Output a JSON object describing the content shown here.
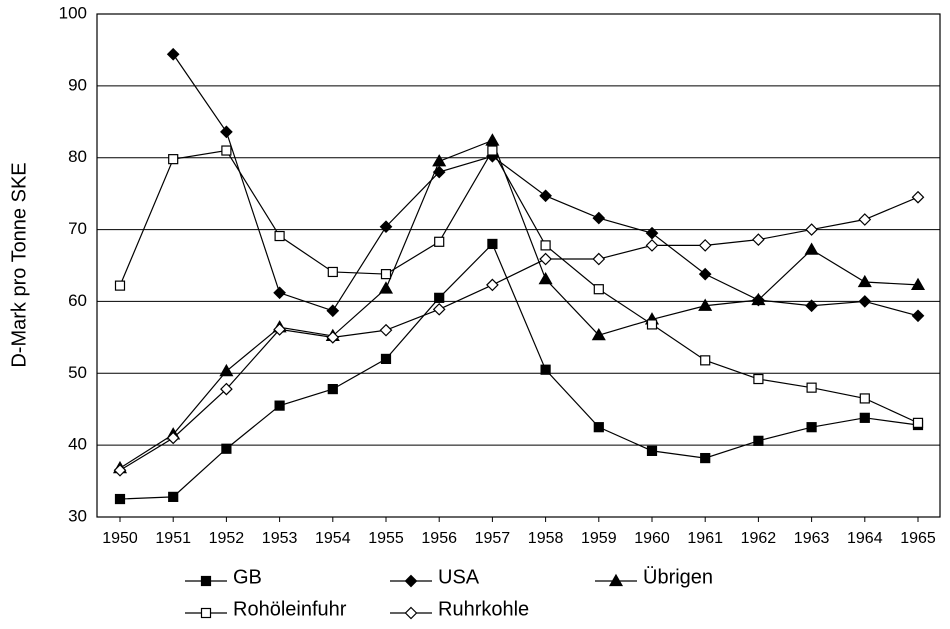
{
  "chart_data": {
    "type": "line",
    "y_label": "D-Mark pro Tonne SKE",
    "x": [
      1950,
      1951,
      1952,
      1953,
      1954,
      1955,
      1956,
      1957,
      1958,
      1959,
      1960,
      1961,
      1962,
      1963,
      1964,
      1965
    ],
    "xlim": [
      1950,
      1965
    ],
    "xticks": [
      1950,
      1951,
      1952,
      1953,
      1954,
      1955,
      1956,
      1957,
      1958,
      1959,
      1960,
      1961,
      1962,
      1963,
      1964,
      1965
    ],
    "ylim": [
      30,
      100
    ],
    "yticks": [
      30,
      40,
      50,
      60,
      70,
      80,
      90,
      100
    ],
    "grid": true,
    "series": [
      {
        "name": "GB",
        "color": "#000000",
        "marker": "square",
        "filled": true,
        "values": [
          32.5,
          32.8,
          39.5,
          45.5,
          47.8,
          52,
          60.5,
          68,
          50.5,
          42.5,
          39.2,
          38.2,
          40.6,
          42.5,
          43.8,
          42.8
        ]
      },
      {
        "name": "USA",
        "color": "#000000",
        "marker": "diamond",
        "filled": true,
        "values": [
          null,
          94.4,
          83.6,
          61.2,
          58.7,
          70.4,
          78,
          80.2,
          74.7,
          71.6,
          69.5,
          63.8,
          60.2,
          59.4,
          60,
          58
        ]
      },
      {
        "name": "Übrigen",
        "color": "#000000",
        "marker": "triangle",
        "filled": true,
        "values": [
          36.8,
          41.5,
          50.3,
          56.4,
          55.2,
          61.8,
          79.5,
          82.4,
          63.1,
          55.3,
          57.5,
          59.4,
          60.2,
          67.2,
          62.7,
          62.3
        ]
      },
      {
        "name": "Rohöleinfuhr",
        "color": "#000000",
        "marker": "square",
        "filled": false,
        "values": [
          62.2,
          79.8,
          81,
          69.1,
          64.1,
          63.8,
          68.3,
          81,
          67.8,
          61.7,
          56.8,
          51.8,
          49.2,
          48,
          46.5,
          43.1
        ]
      },
      {
        "name": "Ruhrkohle",
        "color": "#000000",
        "marker": "diamond",
        "filled": false,
        "values": [
          36.5,
          41,
          47.8,
          56.1,
          55,
          56,
          58.9,
          62.3,
          65.9,
          65.9,
          67.8,
          67.8,
          68.6,
          70,
          71.4,
          74.5
        ]
      }
    ]
  }
}
